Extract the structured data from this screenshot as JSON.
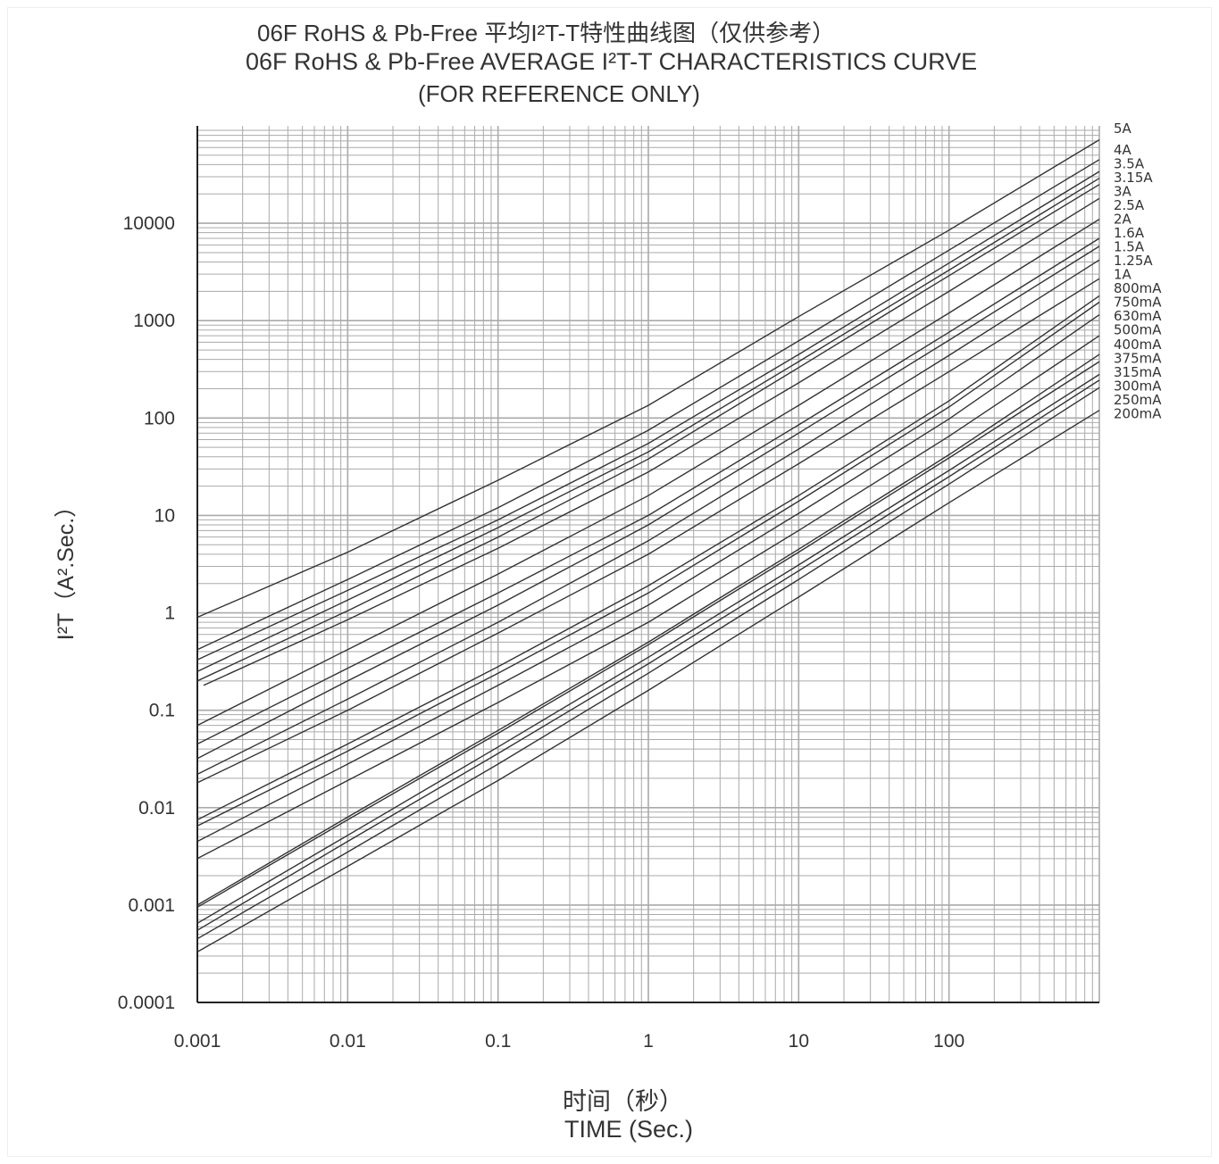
{
  "header": {
    "title_zh": "06F RoHS & Pb-Free 平均I²T-T特性曲线图（仅供参考）",
    "title_en": "06F RoHS & Pb-Free  AVERAGE I²T-T CHARACTERISTICS CURVE",
    "subtitle": "(FOR REFERENCE ONLY)"
  },
  "colors": {
    "grid": "#aaaaaa",
    "curve": "#333333",
    "axis": "#222222"
  },
  "chart_data": {
    "type": "line",
    "title": "06F RoHS & Pb-Free  AVERAGE I²T-T CHARACTERISTICS CURVE",
    "subtitle": "(FOR REFERENCE ONLY)",
    "xlabel_zh": "时间（秒）",
    "xlabel": "TIME (Sec.)",
    "ylabel": "I²T（A².Sec.）",
    "xscale": "log",
    "yscale": "log",
    "xlim": [
      0.001,
      1000
    ],
    "ylim": [
      0.0001,
      100000
    ],
    "grid": true,
    "legend": "labels at right end of curves",
    "x_ticks": [
      {
        "value": 0.001,
        "label": "0.001"
      },
      {
        "value": 0.01,
        "label": "0.01"
      },
      {
        "value": 0.1,
        "label": "0.1"
      },
      {
        "value": 1,
        "label": "1"
      },
      {
        "value": 10,
        "label": "10"
      },
      {
        "value": 100,
        "label": "100"
      }
    ],
    "y_ticks": [
      {
        "value": 0.0001,
        "label": "0.0001"
      },
      {
        "value": 0.001,
        "label": "0.001"
      },
      {
        "value": 0.01,
        "label": "0.01"
      },
      {
        "value": 0.1,
        "label": "0.1"
      },
      {
        "value": 1,
        "label": "1"
      },
      {
        "value": 10,
        "label": "10"
      },
      {
        "value": 100,
        "label": "100"
      },
      {
        "value": 1000,
        "label": "1000"
      },
      {
        "value": 10000,
        "label": "10000"
      }
    ],
    "series": [
      {
        "name": "5A",
        "points": [
          [
            0.001,
            0.9
          ],
          [
            0.01,
            4.2
          ],
          [
            0.1,
            23
          ],
          [
            1,
            135
          ],
          [
            10,
            1100
          ],
          [
            100,
            8500
          ],
          [
            1000,
            72000
          ]
        ]
      },
      {
        "name": "4A",
        "points": [
          [
            0.001,
            0.42
          ],
          [
            0.01,
            2.2
          ],
          [
            0.1,
            12
          ],
          [
            1,
            75
          ],
          [
            10,
            620
          ],
          [
            100,
            5300
          ],
          [
            1000,
            45000
          ]
        ]
      },
      {
        "name": "3.5A",
        "points": [
          [
            0.001,
            0.33
          ],
          [
            0.01,
            1.7
          ],
          [
            0.1,
            9
          ],
          [
            1,
            55
          ],
          [
            10,
            450
          ],
          [
            100,
            3900
          ],
          [
            1000,
            34000
          ]
        ]
      },
      {
        "name": "3.15A",
        "points": [
          [
            0.001,
            0.25
          ],
          [
            0.01,
            1.35
          ],
          [
            0.1,
            7.5
          ],
          [
            1,
            45
          ],
          [
            10,
            380
          ],
          [
            100,
            3300
          ],
          [
            1000,
            29000
          ]
        ]
      },
      {
        "name": "3A",
        "points": [
          [
            0.001,
            0.2
          ],
          [
            0.01,
            1.05
          ],
          [
            0.1,
            6
          ],
          [
            1,
            38
          ],
          [
            10,
            330
          ],
          [
            100,
            2900
          ],
          [
            1000,
            25000
          ]
        ]
      },
      {
        "name": "2.5A",
        "points": [
          [
            0.0011,
            0.18
          ],
          [
            0.01,
            0.85
          ],
          [
            0.1,
            4.6
          ],
          [
            1,
            28
          ],
          [
            10,
            230
          ],
          [
            100,
            2000
          ],
          [
            1000,
            18000
          ]
        ]
      },
      {
        "name": "2A",
        "points": [
          [
            0.001,
            0.07
          ],
          [
            0.01,
            0.42
          ],
          [
            0.1,
            2.5
          ],
          [
            1,
            16
          ],
          [
            10,
            135
          ],
          [
            100,
            1200
          ],
          [
            1000,
            11000
          ]
        ]
      },
      {
        "name": "1.6A",
        "points": [
          [
            0.001,
            0.045
          ],
          [
            0.01,
            0.27
          ],
          [
            0.1,
            1.6
          ],
          [
            1,
            10
          ],
          [
            10,
            85
          ],
          [
            100,
            760
          ],
          [
            1000,
            7000
          ]
        ]
      },
      {
        "name": "1.5A",
        "points": [
          [
            0.001,
            0.032
          ],
          [
            0.01,
            0.2
          ],
          [
            0.1,
            1.2
          ],
          [
            1,
            8
          ],
          [
            10,
            70
          ],
          [
            100,
            630
          ],
          [
            1000,
            5800
          ]
        ]
      },
      {
        "name": "1.25A",
        "points": [
          [
            0.001,
            0.022
          ],
          [
            0.01,
            0.13
          ],
          [
            0.1,
            0.8
          ],
          [
            1,
            5.5
          ],
          [
            10,
            48
          ],
          [
            100,
            440
          ],
          [
            1000,
            4200
          ]
        ]
      },
      {
        "name": "1A",
        "points": [
          [
            0.001,
            0.018
          ],
          [
            0.01,
            0.1
          ],
          [
            0.1,
            0.62
          ],
          [
            1,
            4
          ],
          [
            10,
            34
          ],
          [
            100,
            300
          ],
          [
            1000,
            2700
          ]
        ]
      },
      {
        "name": "800mA",
        "points": [
          [
            0.001,
            0.0075
          ],
          [
            0.01,
            0.045
          ],
          [
            0.1,
            0.28
          ],
          [
            1,
            1.9
          ],
          [
            10,
            16
          ],
          [
            100,
            150
          ],
          [
            1000,
            1800
          ]
        ]
      },
      {
        "name": "750mA",
        "points": [
          [
            0.001,
            0.0065
          ],
          [
            0.01,
            0.038
          ],
          [
            0.1,
            0.24
          ],
          [
            1,
            1.6
          ],
          [
            10,
            14
          ],
          [
            100,
            130
          ],
          [
            1000,
            1550
          ]
        ]
      },
      {
        "name": "630mA",
        "points": [
          [
            0.001,
            0.0045
          ],
          [
            0.01,
            0.028
          ],
          [
            0.1,
            0.18
          ],
          [
            1,
            1.2
          ],
          [
            10,
            10.5
          ],
          [
            100,
            98
          ],
          [
            1000,
            1150
          ]
        ]
      },
      {
        "name": "500mA",
        "points": [
          [
            0.001,
            0.003
          ],
          [
            0.01,
            0.019
          ],
          [
            0.1,
            0.12
          ],
          [
            1,
            0.8
          ],
          [
            10,
            7
          ],
          [
            100,
            65
          ],
          [
            1000,
            700
          ]
        ]
      },
      {
        "name": "400mA",
        "points": [
          [
            0.001,
            0.001
          ],
          [
            0.01,
            0.008
          ],
          [
            0.1,
            0.062
          ],
          [
            1,
            0.5
          ],
          [
            10,
            4.5
          ],
          [
            100,
            42
          ],
          [
            1000,
            450
          ]
        ]
      },
      {
        "name": "375mA",
        "points": [
          [
            0.001,
            0.00095
          ],
          [
            0.01,
            0.0075
          ],
          [
            0.1,
            0.058
          ],
          [
            1,
            0.47
          ],
          [
            10,
            4.2
          ],
          [
            100,
            39
          ],
          [
            1000,
            380
          ]
        ]
      },
      {
        "name": "315mA",
        "points": [
          [
            0.001,
            0.00065
          ],
          [
            0.01,
            0.0052
          ],
          [
            0.1,
            0.042
          ],
          [
            1,
            0.35
          ],
          [
            10,
            3.1
          ],
          [
            100,
            29
          ],
          [
            1000,
            280
          ]
        ]
      },
      {
        "name": "300mA",
        "points": [
          [
            0.001,
            0.00055
          ],
          [
            0.01,
            0.0045
          ],
          [
            0.1,
            0.036
          ],
          [
            1,
            0.3
          ],
          [
            10,
            2.7
          ],
          [
            100,
            25
          ],
          [
            1000,
            245
          ]
        ]
      },
      {
        "name": "250mA",
        "points": [
          [
            0.001,
            0.00045
          ],
          [
            0.01,
            0.0035
          ],
          [
            0.1,
            0.028
          ],
          [
            1,
            0.24
          ],
          [
            10,
            2.2
          ],
          [
            100,
            21
          ],
          [
            1000,
            205
          ]
        ]
      },
      {
        "name": "200mA",
        "points": [
          [
            0.001,
            0.00033
          ],
          [
            0.01,
            0.0025
          ],
          [
            0.1,
            0.019
          ],
          [
            1,
            0.16
          ],
          [
            10,
            1.45
          ],
          [
            100,
            13.5
          ],
          [
            1000,
            120
          ]
        ]
      }
    ]
  }
}
